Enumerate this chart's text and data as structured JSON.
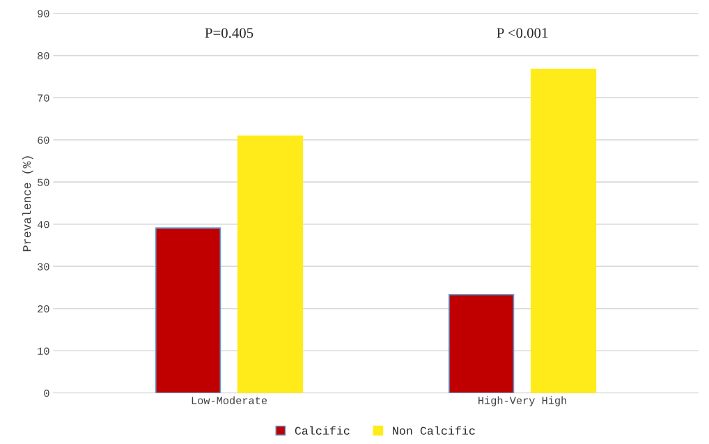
{
  "chart_data": {
    "type": "bar",
    "ylabel": "Prevalence (%)",
    "categories": [
      "Low-Moderate",
      "High-Very High"
    ],
    "series": [
      {
        "name": "Calcific",
        "color": "#c00000",
        "values": [
          39.1,
          23.3
        ]
      },
      {
        "name": "Non Calcific",
        "color": "#ffeb1a",
        "values": [
          60.9,
          76.7
        ]
      }
    ],
    "ylim": [
      0,
      90
    ],
    "yticks": [
      0,
      10,
      20,
      30,
      40,
      50,
      60,
      70,
      80,
      90
    ],
    "grid": "y",
    "legend": "bottom",
    "annotations": [
      "P=0.405",
      "P <0.001"
    ]
  }
}
